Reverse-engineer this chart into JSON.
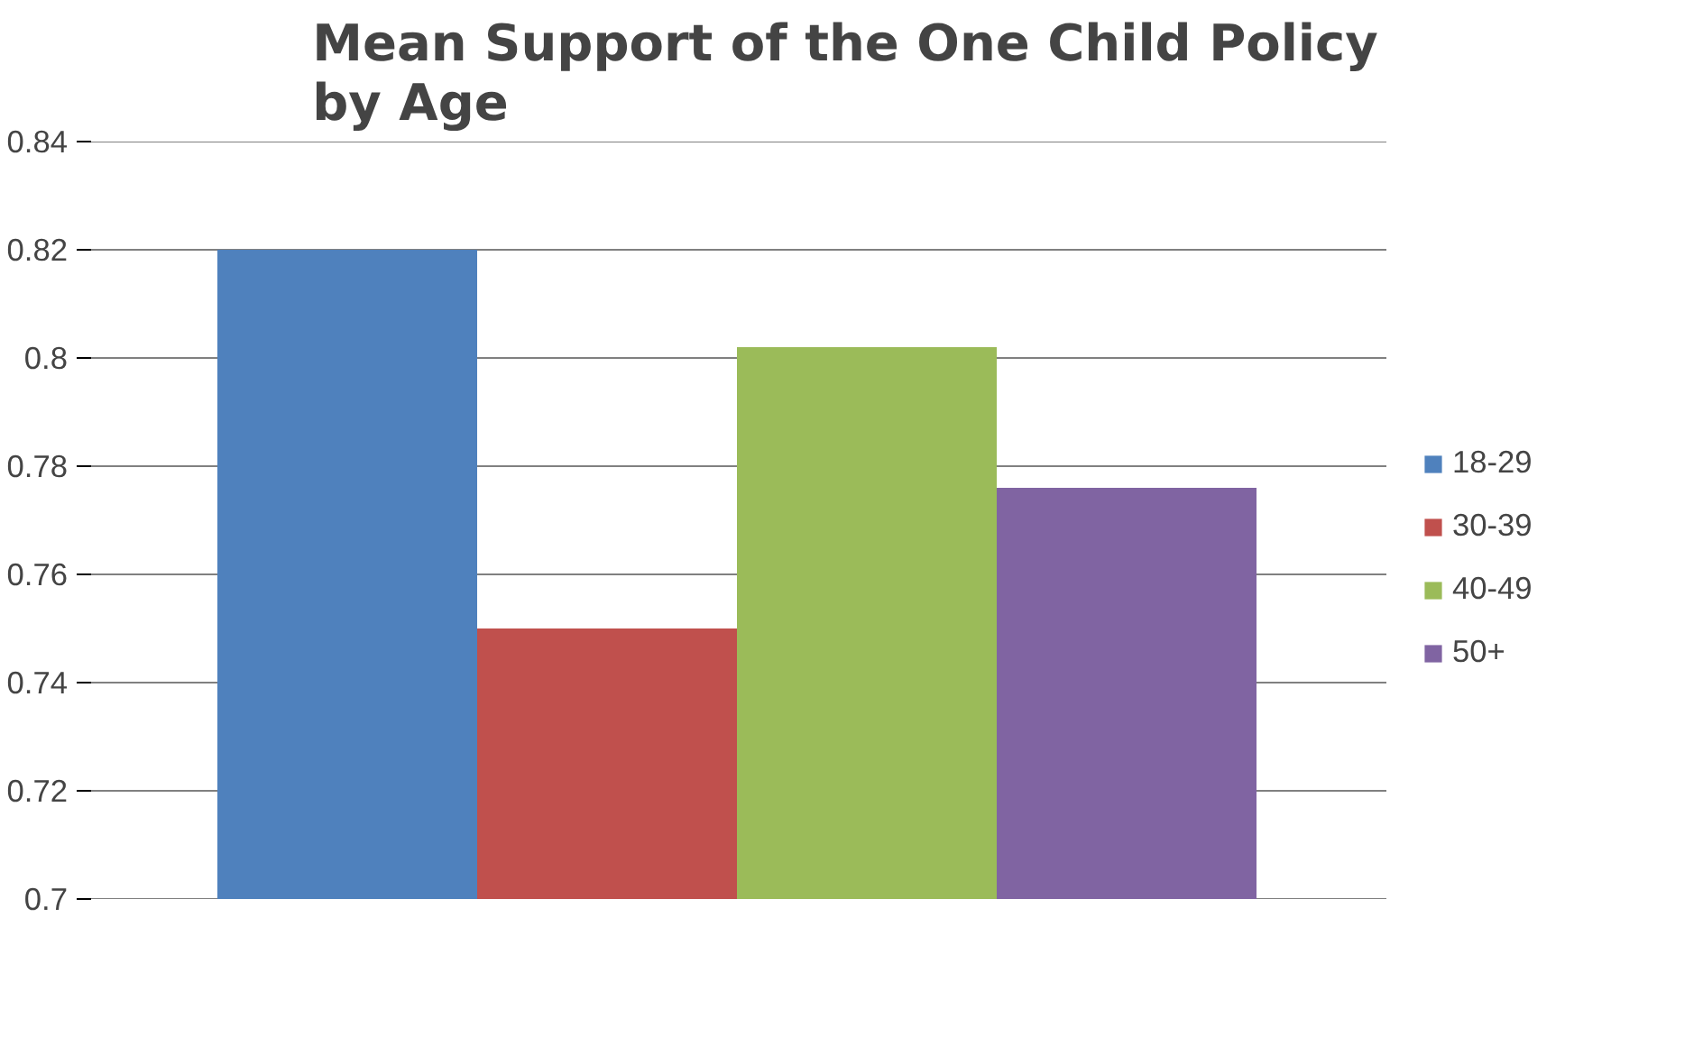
{
  "chart_data": {
    "type": "bar",
    "title": "Mean Support of the One Child Policy\nby Age",
    "categories": [
      null
    ],
    "series": [
      {
        "name": "18-29",
        "color": "#4f81bd",
        "values": [
          0.82
        ]
      },
      {
        "name": "30-39",
        "color": "#c0504d",
        "values": [
          0.75
        ]
      },
      {
        "name": "40-49",
        "color": "#9bbb59",
        "values": [
          0.802
        ]
      },
      {
        "name": "50+",
        "color": "#8064a2",
        "values": [
          0.776
        ]
      }
    ],
    "ylim": [
      0.7,
      0.84
    ],
    "yticks": [
      {
        "value": 0.7,
        "label": "0.7"
      },
      {
        "value": 0.72,
        "label": "0.72"
      },
      {
        "value": 0.74,
        "label": "0.74"
      },
      {
        "value": 0.76,
        "label": "0.76"
      },
      {
        "value": 0.78,
        "label": "0.78"
      },
      {
        "value": 0.8,
        "label": "0.8"
      },
      {
        "value": 0.82,
        "label": "0.82"
      },
      {
        "value": 0.84,
        "label": "0.84"
      }
    ],
    "grid": "y",
    "legend": "right"
  }
}
